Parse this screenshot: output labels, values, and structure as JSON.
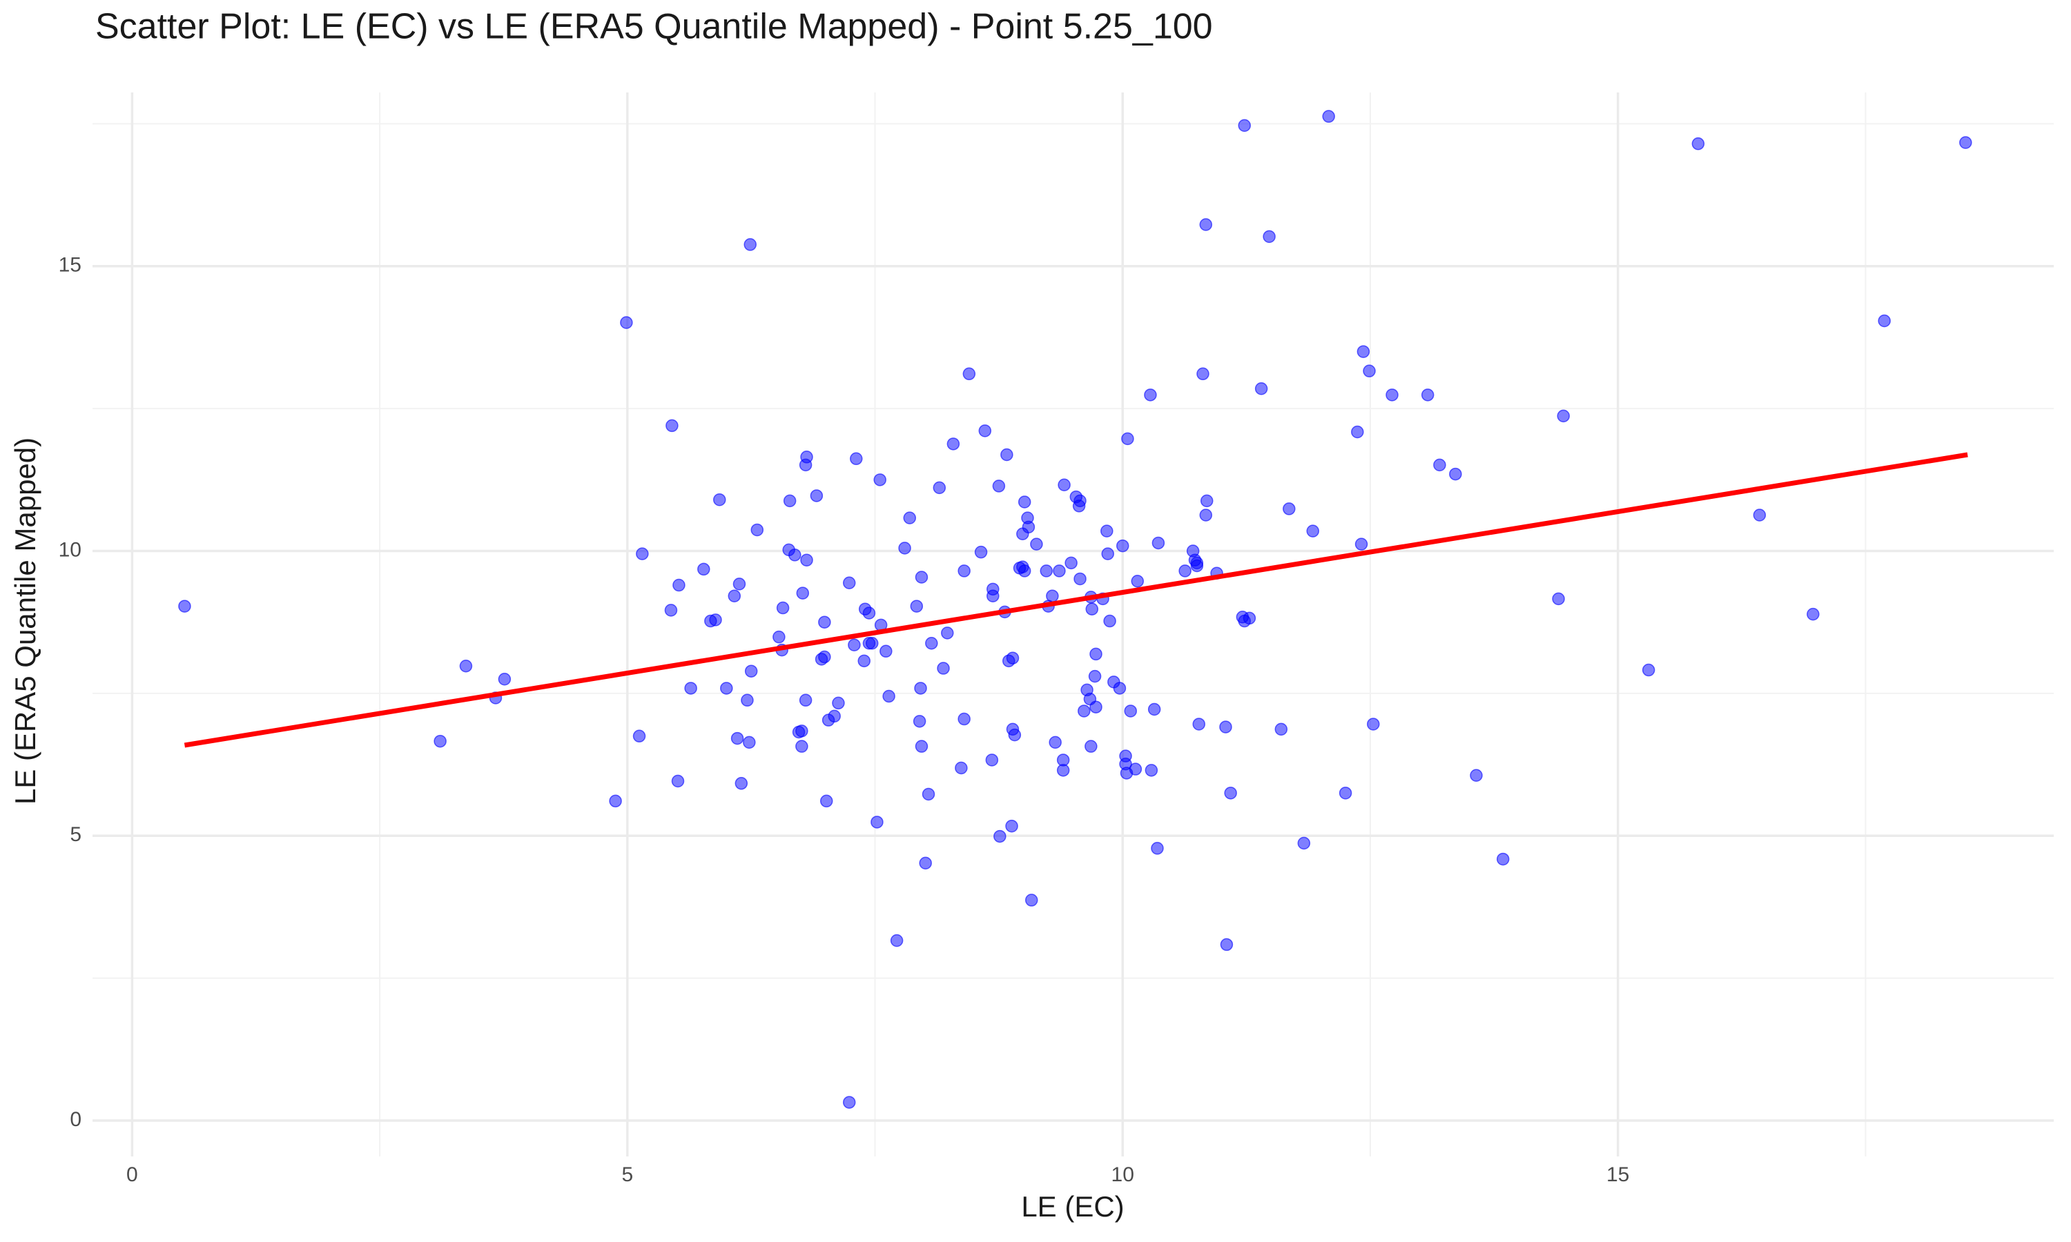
{
  "chart_data": {
    "type": "scatter",
    "title": "Scatter Plot: LE (EC) vs LE (ERA5 Quantile Mapped) - Point 5.25_100",
    "x_label": "LE (EC)",
    "y_label": "LE (ERA5 Quantile Mapped)",
    "xlim": [
      -0.4,
      19.4
    ],
    "ylim": [
      -0.63,
      18.05
    ],
    "xticks": [
      0,
      5,
      10,
      15
    ],
    "yticks": [
      0,
      5,
      10,
      15
    ],
    "x_minor_ticks": [
      2.5,
      7.5,
      12.5,
      17.5
    ],
    "y_minor_ticks": [
      2.5,
      7.5,
      12.5,
      17.5
    ],
    "grid": true,
    "series": [
      {
        "color": "#0000ff",
        "x": [
          0.53,
          3.11,
          3.37,
          3.67,
          3.76,
          4.88,
          4.99,
          5.12,
          5.15,
          5.45,
          5.44,
          5.52,
          5.51,
          5.64,
          5.77,
          5.84,
          5.89,
          5.93,
          6.0,
          6.08,
          6.11,
          6.13,
          6.15,
          6.21,
          6.23,
          6.25,
          6.24,
          6.31,
          6.53,
          6.56,
          6.57,
          6.63,
          6.64,
          6.69,
          6.73,
          6.76,
          6.76,
          6.77,
          6.8,
          6.8,
          6.81,
          6.81,
          6.91,
          6.96,
          6.99,
          6.99,
          7.01,
          7.03,
          7.09,
          7.13,
          7.24,
          7.24,
          7.29,
          7.31,
          7.39,
          7.4,
          7.44,
          7.44,
          7.47,
          7.52,
          7.55,
          7.56,
          7.61,
          7.64,
          7.72,
          7.8,
          7.85,
          7.92,
          7.95,
          7.96,
          7.97,
          7.97,
          8.01,
          8.04,
          8.07,
          8.15,
          8.19,
          8.23,
          8.29,
          8.37,
          8.4,
          8.4,
          8.45,
          8.57,
          8.61,
          8.68,
          8.69,
          8.69,
          8.75,
          8.76,
          8.81,
          8.83,
          8.85,
          8.88,
          8.89,
          8.89,
          8.91,
          8.96,
          8.99,
          8.99,
          9.01,
          9.01,
          9.04,
          9.05,
          9.08,
          9.13,
          9.23,
          9.25,
          9.29,
          9.32,
          9.36,
          9.4,
          9.4,
          9.41,
          9.48,
          9.53,
          9.56,
          9.57,
          9.57,
          9.61,
          9.64,
          9.67,
          9.68,
          9.68,
          9.69,
          9.72,
          9.73,
          9.73,
          9.8,
          9.84,
          9.85,
          9.87,
          9.91,
          9.97,
          10.0,
          10.03,
          10.03,
          10.04,
          10.05,
          10.08,
          10.13,
          10.15,
          10.28,
          10.29,
          10.32,
          10.35,
          10.36,
          10.63,
          10.71,
          10.73,
          10.75,
          10.75,
          10.77,
          10.81,
          10.84,
          10.84,
          10.85,
          10.95,
          11.04,
          11.05,
          11.09,
          11.21,
          11.23,
          11.28,
          11.23,
          11.4,
          11.48,
          11.6,
          11.68,
          11.83,
          11.92,
          12.08,
          12.25,
          12.37,
          12.41,
          12.43,
          12.49,
          12.53,
          12.72,
          13.08,
          13.2,
          13.36,
          13.57,
          13.84,
          14.4,
          14.45,
          15.31,
          15.81,
          16.43,
          16.97,
          17.69,
          18.51
        ],
        "values": [
          9.03,
          6.66,
          7.98,
          7.42,
          7.75,
          5.61,
          14.01,
          6.75,
          9.95,
          12.2,
          8.96,
          9.4,
          5.96,
          7.59,
          9.68,
          8.77,
          8.79,
          10.9,
          7.59,
          9.21,
          6.71,
          9.42,
          5.92,
          7.38,
          6.64,
          7.89,
          15.38,
          10.37,
          8.49,
          8.26,
          9.0,
          10.02,
          10.88,
          9.93,
          6.82,
          6.84,
          6.57,
          9.26,
          7.38,
          11.51,
          11.65,
          9.84,
          10.97,
          8.1,
          8.14,
          8.75,
          5.61,
          7.03,
          7.1,
          7.33,
          9.44,
          0.32,
          8.35,
          11.62,
          8.07,
          8.98,
          8.91,
          8.38,
          8.38,
          5.24,
          11.25,
          8.7,
          8.24,
          7.45,
          3.16,
          10.05,
          10.58,
          9.03,
          7.01,
          7.59,
          6.57,
          9.54,
          4.52,
          5.73,
          8.38,
          11.11,
          7.94,
          8.56,
          11.88,
          6.19,
          7.05,
          9.65,
          13.11,
          9.98,
          12.11,
          6.33,
          9.21,
          9.33,
          11.14,
          4.99,
          8.93,
          11.69,
          8.07,
          5.17,
          8.12,
          6.87,
          6.77,
          9.7,
          9.72,
          10.3,
          9.65,
          10.86,
          10.58,
          10.42,
          3.87,
          10.12,
          9.65,
          9.03,
          9.21,
          6.64,
          9.65,
          6.15,
          6.33,
          11.16,
          9.79,
          10.95,
          10.79,
          10.88,
          9.51,
          7.19,
          7.56,
          7.4,
          9.19,
          6.57,
          8.98,
          7.8,
          7.26,
          8.19,
          9.16,
          10.35,
          9.95,
          8.77,
          7.7,
          7.59,
          10.09,
          6.4,
          6.26,
          6.1,
          11.97,
          7.19,
          6.17,
          9.47,
          12.74,
          6.15,
          7.22,
          4.78,
          10.14,
          9.65,
          10.0,
          9.84,
          9.74,
          9.79,
          6.96,
          13.11,
          15.73,
          10.63,
          10.88,
          9.61,
          6.91,
          3.09,
          5.75,
          8.84,
          8.77,
          8.82,
          17.47,
          12.85,
          15.52,
          6.87,
          10.74,
          4.87,
          10.35,
          17.63,
          5.75,
          12.09,
          10.12,
          13.5,
          13.16,
          6.96,
          12.74,
          12.74,
          11.51,
          11.35,
          6.06,
          4.59,
          9.16,
          12.37,
          7.91,
          17.15,
          10.63,
          8.89,
          14.04,
          17.17
        ]
      }
    ],
    "fit": {
      "color": "#ff0000",
      "x": [
        0.53,
        18.53
      ],
      "values": [
        6.59,
        11.69
      ]
    }
  }
}
